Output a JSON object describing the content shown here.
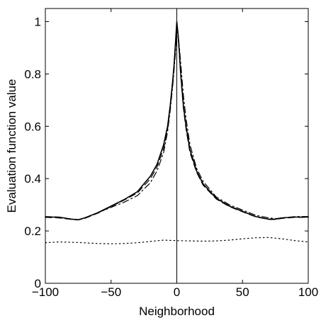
{
  "chart_data": {
    "type": "line",
    "title": "",
    "xlabel": "Neighborhood",
    "ylabel": "Evaluation function value",
    "xlim": [
      -100,
      100
    ],
    "ylim": [
      0,
      1.05
    ],
    "xticks": [
      -100,
      -50,
      0,
      50,
      100
    ],
    "yticks": [
      0,
      0.2,
      0.4,
      0.6,
      0.8,
      1
    ],
    "ytick_labels": [
      "0",
      "0.2",
      "0.4",
      "0.6",
      "0.8",
      "1"
    ],
    "grid": false,
    "legend": "none",
    "vertical_reference_line_x": 0,
    "series": [
      {
        "style": "solid",
        "color": "#000000",
        "x": [
          -100,
          -90,
          -80,
          -75,
          -70,
          -60,
          -50,
          -40,
          -30,
          -20,
          -15,
          -10,
          -7,
          -5,
          -3,
          -2,
          -1,
          0,
          1,
          2,
          3,
          5,
          7,
          10,
          15,
          20,
          30,
          40,
          50,
          60,
          70,
          75,
          80,
          90,
          100
        ],
        "y": [
          0.253,
          0.253,
          0.245,
          0.243,
          0.25,
          0.27,
          0.295,
          0.32,
          0.35,
          0.41,
          0.455,
          0.53,
          0.6,
          0.68,
          0.78,
          0.84,
          0.92,
          1.0,
          0.95,
          0.88,
          0.8,
          0.68,
          0.6,
          0.51,
          0.43,
          0.38,
          0.325,
          0.295,
          0.275,
          0.255,
          0.245,
          0.245,
          0.25,
          0.253,
          0.253
        ]
      },
      {
        "style": "dash-dot",
        "color": "#000000",
        "x": [
          -100,
          -90,
          -80,
          -75,
          -70,
          -60,
          -50,
          -40,
          -30,
          -20,
          -15,
          -10,
          -7,
          -5,
          -3,
          -2,
          -1,
          0,
          1,
          2,
          3,
          5,
          7,
          10,
          15,
          20,
          30,
          40,
          50,
          60,
          70,
          75,
          80,
          90,
          100
        ],
        "y": [
          0.255,
          0.253,
          0.245,
          0.243,
          0.248,
          0.27,
          0.29,
          0.31,
          0.335,
          0.385,
          0.43,
          0.5,
          0.58,
          0.66,
          0.76,
          0.82,
          0.88,
          0.97,
          0.95,
          0.9,
          0.84,
          0.72,
          0.63,
          0.53,
          0.44,
          0.39,
          0.33,
          0.3,
          0.28,
          0.26,
          0.25,
          0.247,
          0.25,
          0.255,
          0.255
        ]
      },
      {
        "style": "dashed",
        "color": "#000000",
        "x": [
          -100,
          -90,
          -80,
          -75,
          -70,
          -60,
          -50,
          -40,
          -30,
          -20,
          -15,
          -10,
          -7,
          -5,
          -3,
          -2,
          -1,
          0,
          1,
          2,
          3,
          5,
          7,
          10,
          15,
          20,
          30,
          40,
          50,
          60,
          70,
          75,
          80,
          90,
          100
        ],
        "y": [
          0.252,
          0.25,
          0.244,
          0.242,
          0.248,
          0.268,
          0.293,
          0.318,
          0.345,
          0.4,
          0.445,
          0.515,
          0.59,
          0.67,
          0.77,
          0.83,
          0.9,
          0.99,
          0.94,
          0.87,
          0.79,
          0.67,
          0.59,
          0.5,
          0.425,
          0.375,
          0.322,
          0.293,
          0.273,
          0.254,
          0.244,
          0.244,
          0.248,
          0.252,
          0.252
        ]
      },
      {
        "style": "dotted",
        "color": "#000000",
        "x": [
          -100,
          -90,
          -75,
          -60,
          -50,
          -40,
          -30,
          -20,
          -10,
          0,
          10,
          20,
          30,
          40,
          50,
          60,
          70,
          80,
          90,
          100
        ],
        "y": [
          0.155,
          0.158,
          0.156,
          0.152,
          0.151,
          0.152,
          0.155,
          0.16,
          0.165,
          0.163,
          0.162,
          0.161,
          0.162,
          0.165,
          0.17,
          0.174,
          0.175,
          0.17,
          0.163,
          0.158
        ]
      }
    ]
  }
}
